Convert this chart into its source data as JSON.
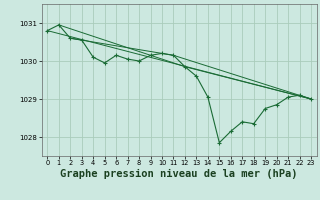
{
  "background_color": "#cce8e0",
  "grid_color": "#aaccbb",
  "line_color": "#1a6b35",
  "marker_color": "#1a6b35",
  "xlabel": "Graphe pression niveau de la mer (hPa)",
  "xlabel_fontsize": 7.5,
  "ylabel_values": [
    1028,
    1029,
    1030,
    1031
  ],
  "xlim": [
    -0.5,
    23.5
  ],
  "ylim": [
    1027.5,
    1031.5
  ],
  "xticks": [
    0,
    1,
    2,
    3,
    4,
    5,
    6,
    7,
    8,
    9,
    10,
    11,
    12,
    13,
    14,
    15,
    16,
    17,
    18,
    19,
    20,
    21,
    22,
    23
  ],
  "series": [
    [
      0,
      1030.8
    ],
    [
      1,
      1030.95
    ],
    [
      2,
      1030.6
    ],
    [
      3,
      1030.55
    ],
    [
      4,
      1030.1
    ],
    [
      5,
      1029.95
    ],
    [
      6,
      1030.15
    ],
    [
      7,
      1030.05
    ],
    [
      8,
      1030.0
    ],
    [
      9,
      1030.15
    ],
    [
      10,
      1030.2
    ],
    [
      11,
      1030.15
    ],
    [
      12,
      1029.85
    ],
    [
      13,
      1029.6
    ],
    [
      14,
      1029.05
    ],
    [
      15,
      1027.85
    ],
    [
      16,
      1028.15
    ],
    [
      17,
      1028.4
    ],
    [
      18,
      1028.35
    ],
    [
      19,
      1028.75
    ],
    [
      20,
      1028.85
    ],
    [
      21,
      1029.05
    ],
    [
      22,
      1029.1
    ],
    [
      23,
      1029.0
    ]
  ],
  "line2": [
    [
      0,
      1030.8
    ],
    [
      23,
      1029.0
    ]
  ],
  "line3": [
    [
      1,
      1030.95
    ],
    [
      12,
      1029.85
    ],
    [
      23,
      1029.0
    ]
  ],
  "line4": [
    [
      2,
      1030.6
    ],
    [
      11,
      1030.15
    ],
    [
      23,
      1029.0
    ]
  ]
}
